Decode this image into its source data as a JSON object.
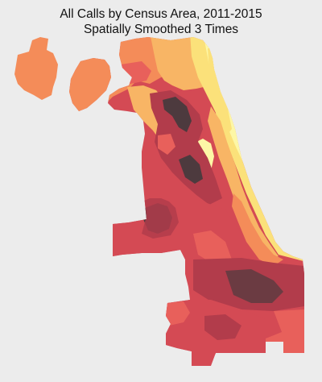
{
  "title": {
    "line1": "All Calls by Census Area, 2011-2015",
    "line2": "Spatially Smoothed 3 Times"
  },
  "palette": {
    "background": "#ececec",
    "lowest": "#fdf7a6",
    "low": "#fbe17a",
    "low_mid": "#f8b565",
    "mid": "#f48c59",
    "mid_high": "#e8605b",
    "high": "#d44a54",
    "higher": "#b23c4b",
    "highest": "#4d3a3e"
  }
}
